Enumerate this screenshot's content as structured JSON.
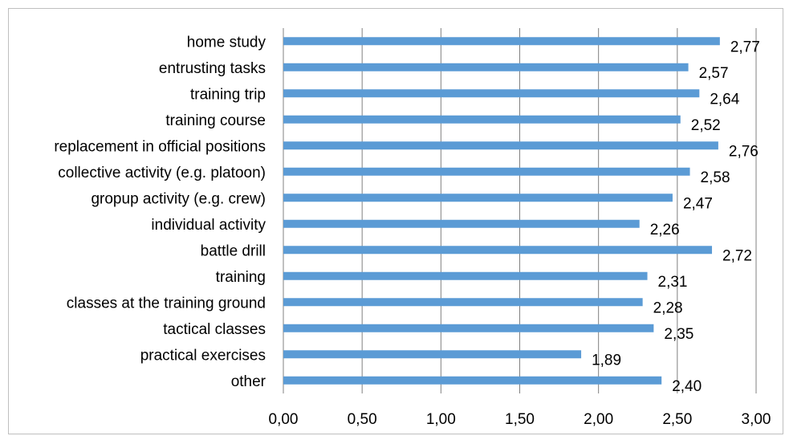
{
  "chart_data": {
    "type": "bar",
    "orientation": "horizontal",
    "title": "",
    "xlabel": "",
    "ylabel": "",
    "categories": [
      "home study",
      "entrusting tasks",
      "training trip",
      "training course",
      "replacement in official positions",
      "collective activity (e.g. platoon)",
      "gropup activity (e.g. crew)",
      "individual activity",
      "battle drill",
      "training",
      "classes at the training ground",
      "tactical classes",
      "practical exercises",
      "other"
    ],
    "values": [
      2.77,
      2.57,
      2.64,
      2.52,
      2.76,
      2.58,
      2.47,
      2.26,
      2.72,
      2.31,
      2.28,
      2.35,
      1.89,
      2.4
    ],
    "value_labels": [
      "2,77",
      "2,57",
      "2,64",
      "2,52",
      "2,76",
      "2,58",
      "2,47",
      "2,26",
      "2,72",
      "2,31",
      "2,28",
      "2,35",
      "1,89",
      "2,40"
    ],
    "xlim": [
      0,
      3
    ],
    "x_ticks": [
      "0,00",
      "0,50",
      "1,00",
      "1,50",
      "2,00",
      "2,50",
      "3,00"
    ],
    "grid": true,
    "legend": "none",
    "bar_color": "#5b9bd5"
  }
}
